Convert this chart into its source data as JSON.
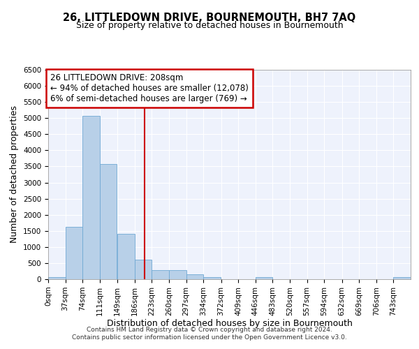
{
  "title": "26, LITTLEDOWN DRIVE, BOURNEMOUTH, BH7 7AQ",
  "subtitle": "Size of property relative to detached houses in Bournemouth",
  "xlabel": "Distribution of detached houses by size in Bournemouth",
  "ylabel": "Number of detached properties",
  "bin_labels": [
    "0sqm",
    "37sqm",
    "74sqm",
    "111sqm",
    "149sqm",
    "186sqm",
    "223sqm",
    "260sqm",
    "297sqm",
    "334sqm",
    "372sqm",
    "409sqm",
    "446sqm",
    "483sqm",
    "520sqm",
    "557sqm",
    "594sqm",
    "632sqm",
    "669sqm",
    "706sqm",
    "743sqm"
  ],
  "bin_edges": [
    0,
    37,
    74,
    111,
    149,
    186,
    223,
    260,
    297,
    334,
    372,
    409,
    446,
    483,
    520,
    557,
    594,
    632,
    669,
    706,
    743
  ],
  "bar_values": [
    75,
    1625,
    5075,
    3575,
    1400,
    600,
    280,
    290,
    150,
    75,
    0,
    0,
    60,
    0,
    0,
    0,
    0,
    0,
    0,
    0,
    55
  ],
  "bar_color": "#b8d0e8",
  "bar_edge_color": "#6fa8d4",
  "ylim": [
    0,
    6500
  ],
  "yticks": [
    0,
    500,
    1000,
    1500,
    2000,
    2500,
    3000,
    3500,
    4000,
    4500,
    5000,
    5500,
    6000,
    6500
  ],
  "xlim_max": 780,
  "property_size": 208,
  "vline_color": "#cc0000",
  "annotation_line1": "26 LITTLEDOWN DRIVE: 208sqm",
  "annotation_line2": "← 94% of detached houses are smaller (12,078)",
  "annotation_line3": "6% of semi-detached houses are larger (769) →",
  "annotation_box_color": "#cc0000",
  "footer_text": "Contains HM Land Registry data © Crown copyright and database right 2024.\nContains public sector information licensed under the Open Government Licence v3.0.",
  "bg_color": "#eef2fc",
  "grid_color": "#ffffff",
  "title_fontsize": 10.5,
  "subtitle_fontsize": 9,
  "axis_label_fontsize": 9,
  "tick_fontsize": 7.5,
  "annotation_fontsize": 8.5
}
